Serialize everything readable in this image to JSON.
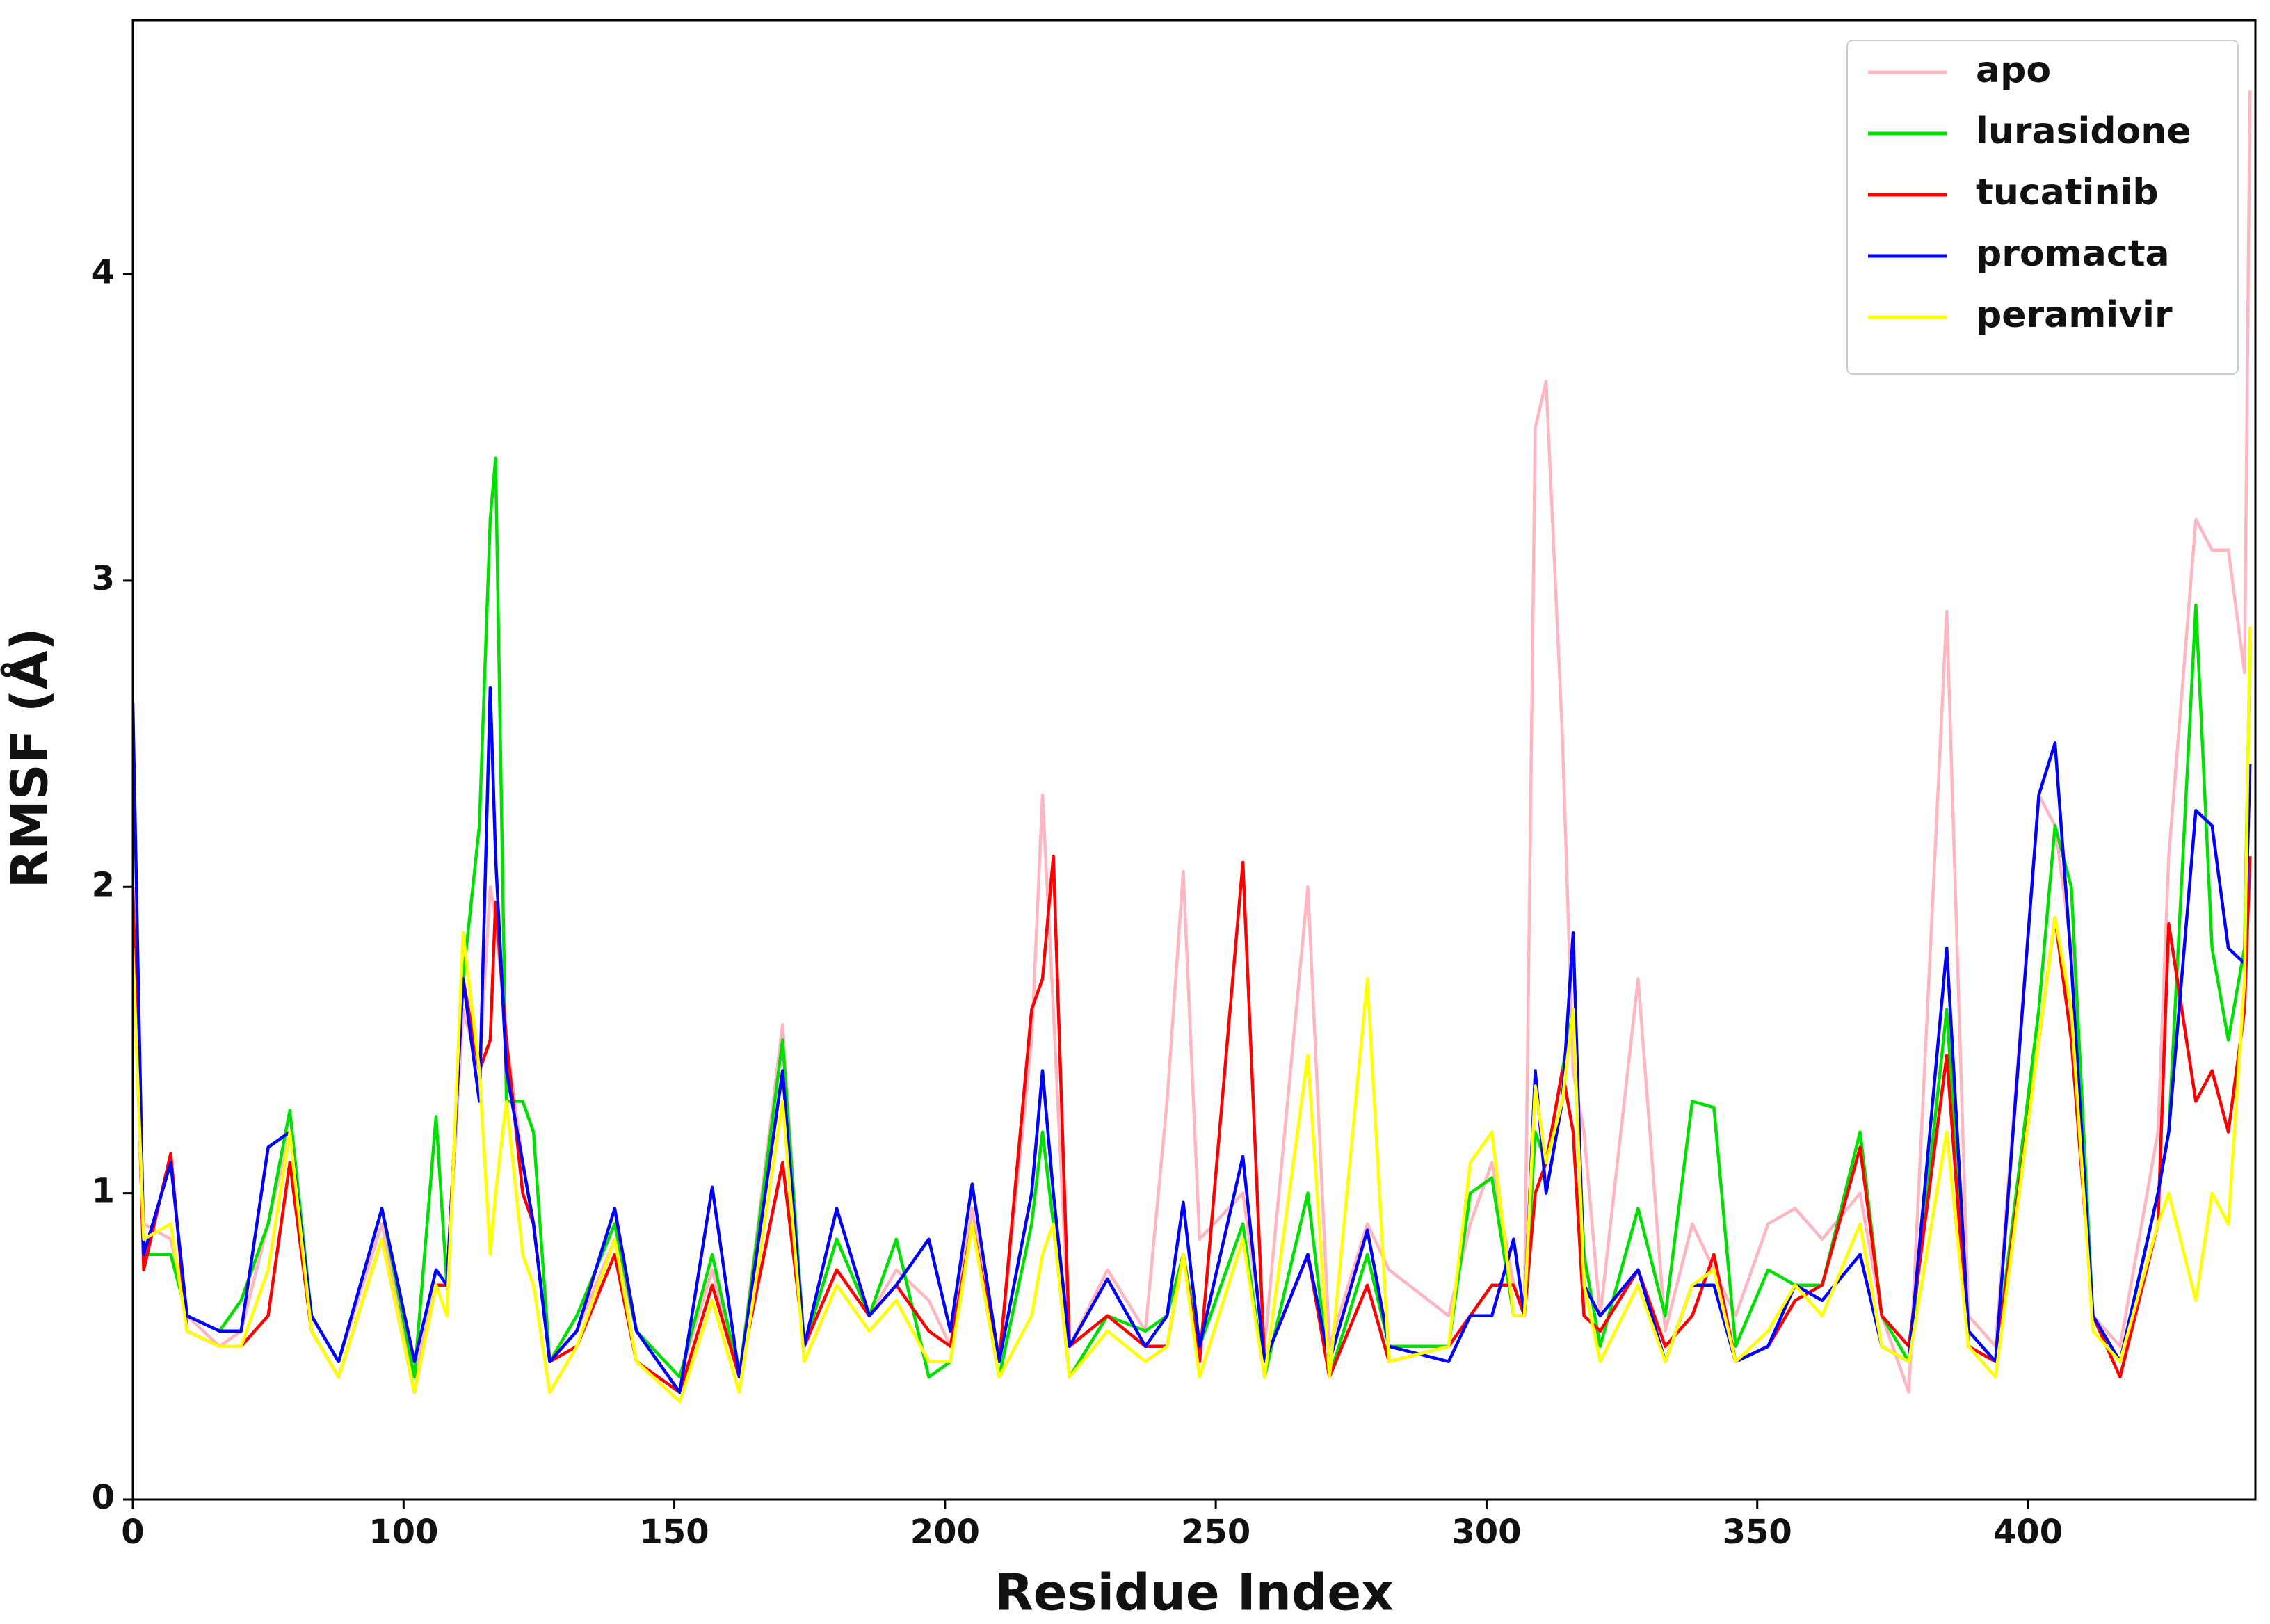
{
  "chart_data": {
    "type": "line",
    "x_label": "Residue Index",
    "y_label": "RMSF (Å)",
    "xlim": [
      0,
      392
    ],
    "ylim": [
      0,
      4.83
    ],
    "xticks": [
      0,
      {
        "value": 50,
        "label": "100"
      },
      {
        "value": 100,
        "label": "150"
      },
      {
        "value": 150,
        "label": "200"
      },
      {
        "value": 200,
        "label": "250"
      },
      {
        "value": 250,
        "label": "300"
      },
      {
        "value": 300,
        "label": "350"
      },
      {
        "value": 350,
        "label": "400"
      }
    ],
    "yticks": [
      0,
      1,
      2,
      3,
      4
    ],
    "grid": false,
    "legend": "upper right",
    "x": [
      0,
      2,
      7,
      10,
      16,
      20,
      25,
      29,
      33,
      38,
      46,
      52,
      56,
      58,
      61,
      64,
      66,
      67,
      69,
      72,
      74,
      77,
      82,
      89,
      93,
      101,
      107,
      112,
      120,
      124,
      130,
      136,
      141,
      147,
      151,
      155,
      160,
      166,
      168,
      170,
      173,
      180,
      187,
      191,
      194,
      197,
      205,
      209,
      217,
      221,
      228,
      232,
      243,
      247,
      251,
      255,
      257,
      259,
      261,
      264,
      266,
      268,
      271,
      278,
      283,
      288,
      292,
      296,
      302,
      307,
      312,
      319,
      323,
      328,
      335,
      339,
      344,
      352,
      355,
      358,
      362,
      367,
      374,
      376,
      381,
      384,
      387,
      390,
      391
    ],
    "series": [
      {
        "name": "apo",
        "color": "#ffb6c1",
        "values": [
          1.9,
          0.9,
          0.85,
          0.6,
          0.5,
          0.55,
          0.9,
          1.2,
          0.6,
          0.45,
          0.9,
          0.4,
          0.7,
          0.7,
          1.6,
          1.4,
          2.0,
          1.9,
          1.5,
          1.1,
          0.9,
          0.45,
          0.55,
          0.85,
          0.55,
          0.4,
          0.75,
          0.4,
          1.55,
          0.5,
          0.85,
          0.6,
          0.75,
          0.65,
          0.5,
          0.95,
          0.45,
          1.5,
          2.3,
          1.6,
          0.5,
          0.75,
          0.55,
          1.3,
          2.05,
          0.85,
          1.0,
          0.5,
          2.0,
          0.5,
          0.9,
          0.75,
          0.6,
          0.9,
          1.1,
          0.7,
          0.6,
          3.5,
          3.65,
          2.5,
          1.4,
          1.2,
          0.6,
          1.7,
          0.55,
          0.9,
          0.75,
          0.6,
          0.9,
          0.95,
          0.85,
          1.0,
          0.6,
          0.35,
          2.9,
          0.6,
          0.5,
          2.3,
          2.2,
          1.8,
          0.6,
          0.5,
          1.2,
          2.1,
          3.2,
          3.1,
          3.1,
          2.7,
          4.6
        ]
      },
      {
        "name": "lurasidone",
        "color": "#00e000",
        "values": [
          1.9,
          0.8,
          0.8,
          0.6,
          0.55,
          0.65,
          0.9,
          1.27,
          0.6,
          0.45,
          0.95,
          0.4,
          1.25,
          0.7,
          1.7,
          2.2,
          3.2,
          3.4,
          1.3,
          1.3,
          1.2,
          0.45,
          0.6,
          0.9,
          0.55,
          0.4,
          0.8,
          0.4,
          1.5,
          0.5,
          0.85,
          0.6,
          0.85,
          0.4,
          0.45,
          0.9,
          0.4,
          0.9,
          1.2,
          0.9,
          0.4,
          0.6,
          0.55,
          0.6,
          0.8,
          0.5,
          0.9,
          0.4,
          1.0,
          0.4,
          0.8,
          0.5,
          0.5,
          1.0,
          1.05,
          0.6,
          0.6,
          1.2,
          1.1,
          1.4,
          1.6,
          0.8,
          0.5,
          0.95,
          0.6,
          1.3,
          1.28,
          0.5,
          0.75,
          0.7,
          0.7,
          1.2,
          0.6,
          0.45,
          1.6,
          0.5,
          0.45,
          1.6,
          2.2,
          2.0,
          0.6,
          0.45,
          1.0,
          1.2,
          2.92,
          1.8,
          1.5,
          1.8,
          2.8
        ]
      },
      {
        "name": "tucatinib",
        "color": "#ff0000",
        "values": [
          2.0,
          0.75,
          1.13,
          0.55,
          0.5,
          0.5,
          0.6,
          1.1,
          0.55,
          0.4,
          0.85,
          0.35,
          0.7,
          0.7,
          1.7,
          1.4,
          1.5,
          1.95,
          1.5,
          1.0,
          0.9,
          0.45,
          0.5,
          0.8,
          0.45,
          0.35,
          0.7,
          0.4,
          1.1,
          0.5,
          0.75,
          0.6,
          0.7,
          0.55,
          0.5,
          0.9,
          0.45,
          1.6,
          1.7,
          2.1,
          0.5,
          0.6,
          0.5,
          0.5,
          0.8,
          0.45,
          2.08,
          0.45,
          0.8,
          0.4,
          0.7,
          0.45,
          0.5,
          0.6,
          0.7,
          0.7,
          0.6,
          1.0,
          1.1,
          1.4,
          1.2,
          0.6,
          0.55,
          0.75,
          0.5,
          0.6,
          0.8,
          0.45,
          0.5,
          0.65,
          0.7,
          1.15,
          0.6,
          0.5,
          1.45,
          0.5,
          0.45,
          1.5,
          1.9,
          1.5,
          0.6,
          0.4,
          0.9,
          1.88,
          1.3,
          1.4,
          1.2,
          1.6,
          2.1
        ]
      },
      {
        "name": "promacta",
        "color": "#0000ff",
        "values": [
          2.6,
          0.8,
          1.1,
          0.6,
          0.55,
          0.55,
          1.15,
          1.2,
          0.6,
          0.45,
          0.95,
          0.45,
          0.75,
          0.7,
          1.7,
          1.3,
          2.65,
          2.1,
          1.4,
          1.1,
          0.9,
          0.45,
          0.55,
          0.95,
          0.55,
          0.35,
          1.02,
          0.4,
          1.4,
          0.5,
          0.95,
          0.6,
          0.7,
          0.85,
          0.55,
          1.03,
          0.45,
          1.0,
          1.4,
          1.0,
          0.5,
          0.72,
          0.5,
          0.6,
          0.97,
          0.5,
          1.12,
          0.45,
          0.8,
          0.45,
          0.88,
          0.5,
          0.45,
          0.6,
          0.6,
          0.85,
          0.6,
          1.4,
          1.0,
          1.3,
          1.85,
          0.7,
          0.6,
          0.75,
          0.45,
          0.7,
          0.7,
          0.45,
          0.5,
          0.7,
          0.65,
          0.8,
          0.5,
          0.45,
          1.8,
          0.55,
          0.45,
          2.3,
          2.47,
          1.75,
          0.6,
          0.45,
          1.0,
          1.2,
          2.25,
          2.2,
          1.8,
          1.75,
          2.4
        ]
      },
      {
        "name": "peramivir",
        "color": "#ffff00",
        "values": [
          1.8,
          0.85,
          0.9,
          0.55,
          0.5,
          0.5,
          0.75,
          1.2,
          0.55,
          0.4,
          0.85,
          0.35,
          0.7,
          0.6,
          1.85,
          1.4,
          0.8,
          1.0,
          1.3,
          0.8,
          0.7,
          0.35,
          0.5,
          0.85,
          0.45,
          0.32,
          0.65,
          0.35,
          1.3,
          0.45,
          0.7,
          0.55,
          0.65,
          0.45,
          0.45,
          0.9,
          0.4,
          0.6,
          0.8,
          0.9,
          0.4,
          0.55,
          0.45,
          0.5,
          0.8,
          0.4,
          0.85,
          0.4,
          1.45,
          0.4,
          1.7,
          0.45,
          0.5,
          1.1,
          1.2,
          0.6,
          0.6,
          1.35,
          1.1,
          1.3,
          1.6,
          0.7,
          0.45,
          0.7,
          0.45,
          0.7,
          0.75,
          0.45,
          0.55,
          0.7,
          0.6,
          0.9,
          0.5,
          0.45,
          1.2,
          0.5,
          0.4,
          1.5,
          1.9,
          1.6,
          0.55,
          0.45,
          0.9,
          1.0,
          0.65,
          1.0,
          0.9,
          1.7,
          2.85
        ]
      }
    ]
  }
}
